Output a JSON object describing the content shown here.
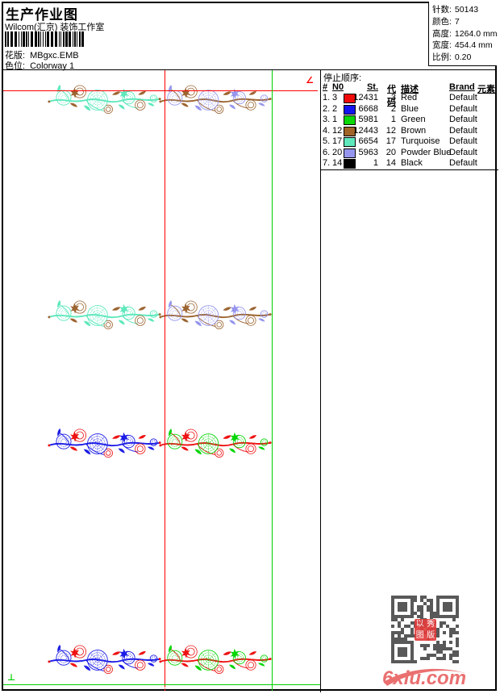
{
  "header": {
    "title": "生产作业图",
    "studio": "Wilcom(汇京) 装饰工作室",
    "pattern_label": "花版:",
    "pattern_value": "MBgxc.EMB",
    "colorway_label": "色位:",
    "colorway_value": "Colorway 1"
  },
  "info_box": {
    "rows": [
      {
        "label": "针数:",
        "value": "50143"
      },
      {
        "label": "颜色:",
        "value": "7"
      },
      {
        "label": "高度:",
        "value": "1264.0 mm"
      },
      {
        "label": "宽度:",
        "value": "454.4 mm"
      },
      {
        "label": "比例:",
        "value": "0.20"
      }
    ]
  },
  "stop_sequence": {
    "title": "停止顺序:",
    "columns": {
      "idx": "#",
      "n0": "N0",
      "st": "St.",
      "code": "代码",
      "desc": "描述",
      "brand": "Brand",
      "element": "元素"
    },
    "rows": [
      {
        "seq": "1.",
        "n0": "3",
        "swatch": "#f00a0a",
        "st": "12431",
        "code": "3",
        "desc": "Red",
        "brand": "Default"
      },
      {
        "seq": "2.",
        "n0": "2",
        "swatch": "#1414f0",
        "st": "6668",
        "code": "2",
        "desc": "Blue",
        "brand": "Default"
      },
      {
        "seq": "3.",
        "n0": "1",
        "swatch": "#0ad80a",
        "st": "5981",
        "code": "1",
        "desc": "Green",
        "brand": "Default"
      },
      {
        "seq": "4.",
        "n0": "12",
        "swatch": "#a06428",
        "st": "12443",
        "code": "12",
        "desc": "Brown",
        "brand": "Default"
      },
      {
        "seq": "5.",
        "n0": "17",
        "swatch": "#5fe8bc",
        "st": "6654",
        "code": "17",
        "desc": "Turquoise",
        "brand": "Default"
      },
      {
        "seq": "6.",
        "n0": "20",
        "swatch": "#9595ee",
        "st": "5963",
        "code": "20",
        "desc": "Powder Blue",
        "brand": "Default"
      },
      {
        "seq": "7.",
        "n0": "14",
        "swatch": "#000000",
        "st": "1",
        "code": "14",
        "desc": "Black",
        "brand": "Default"
      }
    ]
  },
  "threads": {
    "red": "#ee1212",
    "blue": "#1d1de6",
    "green": "#06d606",
    "brown": "#9c6430",
    "turquoise": "#5fe8bc",
    "powder_blue": "#9595ee",
    "black": "#000000"
  },
  "guides": {
    "red": "#ff0000",
    "green": "#00d000"
  },
  "marks": {
    "angle": "∠",
    "origin": "⊥"
  },
  "qr_stamp_chars": [
    "以",
    "秀",
    "图",
    "版"
  ],
  "watermark": {
    "text": "6xiu.com",
    "color": "#ea7070"
  }
}
